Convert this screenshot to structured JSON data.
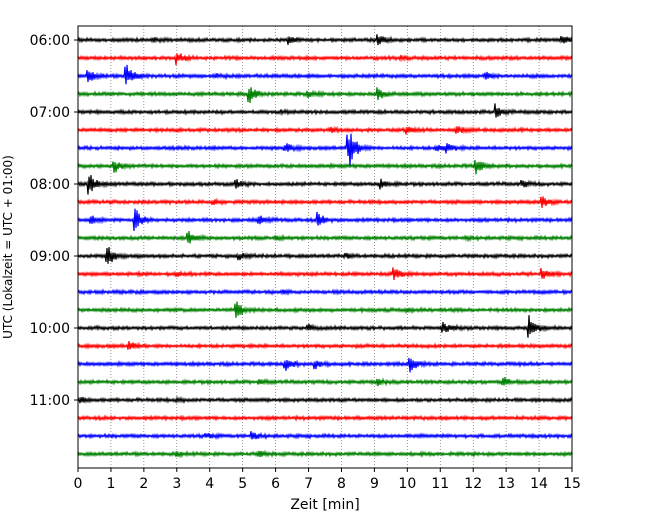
{
  "chart_data": {
    "type": "line",
    "xlabel": "Zeit  [min]",
    "ylabel": "UTC (Lokalzeit = UTC + 01:00)",
    "xlim": [
      0,
      15
    ],
    "x_ticks": [
      "0",
      "1",
      "2",
      "3",
      "4",
      "5",
      "6",
      "7",
      "8",
      "9",
      "10",
      "11",
      "12",
      "13",
      "14",
      "15"
    ],
    "y_ticks": [
      "06:00",
      "07:00",
      "08:00",
      "09:00",
      "10:00",
      "11:00"
    ],
    "grid_x": true,
    "trace_colors": [
      "#000000",
      "#ff0000",
      "#0000ff",
      "#008000"
    ],
    "traces": [
      {
        "start": "06:00",
        "events": [
          {
            "t": 2.3,
            "a": 0.15
          },
          {
            "t": 6.4,
            "a": 0.25
          },
          {
            "t": 9.1,
            "a": 0.35
          },
          {
            "t": 14.7,
            "a": 0.3
          }
        ]
      },
      {
        "start": "06:15",
        "events": [
          {
            "t": 3.0,
            "a": 0.45
          },
          {
            "t": 9.8,
            "a": 0.15
          }
        ]
      },
      {
        "start": "06:30",
        "events": [
          {
            "t": 0.3,
            "a": 0.7
          },
          {
            "t": 1.45,
            "a": 0.85
          },
          {
            "t": 4.2,
            "a": 0.15
          },
          {
            "t": 12.4,
            "a": 0.2
          }
        ]
      },
      {
        "start": "06:45",
        "events": [
          {
            "t": 5.2,
            "a": 0.65
          },
          {
            "t": 9.1,
            "a": 0.45
          },
          {
            "t": 7.0,
            "a": 0.2
          }
        ]
      },
      {
        "start": "07:00",
        "events": [
          {
            "t": 12.7,
            "a": 0.5
          },
          {
            "t": 6.2,
            "a": 0.1
          }
        ]
      },
      {
        "start": "07:15",
        "events": [
          {
            "t": 7.7,
            "a": 0.15
          },
          {
            "t": 10.0,
            "a": 0.25
          },
          {
            "t": 11.5,
            "a": 0.25
          }
        ]
      },
      {
        "start": "07:30",
        "events": [
          {
            "t": 6.3,
            "a": 0.35
          },
          {
            "t": 8.2,
            "a": 1.0
          },
          {
            "t": 8.3,
            "a": 0.6
          },
          {
            "t": 10.9,
            "a": 0.3
          },
          {
            "t": 11.2,
            "a": 0.3
          }
        ]
      },
      {
        "start": "07:45",
        "events": [
          {
            "t": 1.1,
            "a": 0.45
          },
          {
            "t": 12.1,
            "a": 0.55
          }
        ]
      },
      {
        "start": "08:00",
        "events": [
          {
            "t": 0.35,
            "a": 0.7
          },
          {
            "t": 4.8,
            "a": 0.25
          },
          {
            "t": 9.2,
            "a": 0.3
          },
          {
            "t": 13.5,
            "a": 0.2
          }
        ]
      },
      {
        "start": "08:15",
        "events": [
          {
            "t": 4.1,
            "a": 0.15
          },
          {
            "t": 14.1,
            "a": 0.35
          }
        ]
      },
      {
        "start": "08:30",
        "events": [
          {
            "t": 0.4,
            "a": 0.3
          },
          {
            "t": 1.75,
            "a": 0.8
          },
          {
            "t": 5.5,
            "a": 0.3
          },
          {
            "t": 7.3,
            "a": 0.45
          }
        ]
      },
      {
        "start": "08:45",
        "events": [
          {
            "t": 3.35,
            "a": 0.5
          },
          {
            "t": 6.0,
            "a": 0.1
          },
          {
            "t": 11.8,
            "a": 0.1
          }
        ]
      },
      {
        "start": "09:00",
        "events": [
          {
            "t": 0.9,
            "a": 0.8
          },
          {
            "t": 4.9,
            "a": 0.2
          },
          {
            "t": 8.1,
            "a": 0.15
          }
        ]
      },
      {
        "start": "09:15",
        "events": [
          {
            "t": 3.0,
            "a": 0.1
          },
          {
            "t": 9.6,
            "a": 0.45
          },
          {
            "t": 14.1,
            "a": 0.4
          }
        ]
      },
      {
        "start": "09:30",
        "events": [
          {
            "t": 6.2,
            "a": 0.1
          }
        ]
      },
      {
        "start": "09:45",
        "events": [
          {
            "t": 4.8,
            "a": 0.6
          },
          {
            "t": 10.0,
            "a": 0.1
          }
        ]
      },
      {
        "start": "10:00",
        "events": [
          {
            "t": 7.0,
            "a": 0.2
          },
          {
            "t": 11.1,
            "a": 0.35
          },
          {
            "t": 13.7,
            "a": 1.0
          }
        ]
      },
      {
        "start": "10:15",
        "events": [
          {
            "t": 1.55,
            "a": 0.3
          }
        ]
      },
      {
        "start": "10:30",
        "events": [
          {
            "t": 6.3,
            "a": 0.45
          },
          {
            "t": 7.2,
            "a": 0.35
          },
          {
            "t": 10.1,
            "a": 0.5
          }
        ]
      },
      {
        "start": "10:45",
        "events": [
          {
            "t": 5.5,
            "a": 0.15
          },
          {
            "t": 9.1,
            "a": 0.2
          },
          {
            "t": 12.9,
            "a": 0.35
          }
        ]
      },
      {
        "start": "11:00",
        "events": [
          {
            "t": 0.1,
            "a": 0.15
          },
          {
            "t": 3.0,
            "a": 0.1
          }
        ]
      },
      {
        "start": "11:15",
        "events": [
          {
            "t": 11.0,
            "a": 0.05
          }
        ]
      },
      {
        "start": "11:30",
        "events": [
          {
            "t": 3.9,
            "a": 0.15
          },
          {
            "t": 5.3,
            "a": 0.3
          }
        ]
      },
      {
        "start": "11:45",
        "events": [
          {
            "t": 5.5,
            "a": 0.2
          },
          {
            "t": 3.0,
            "a": 0.1
          }
        ]
      }
    ]
  }
}
